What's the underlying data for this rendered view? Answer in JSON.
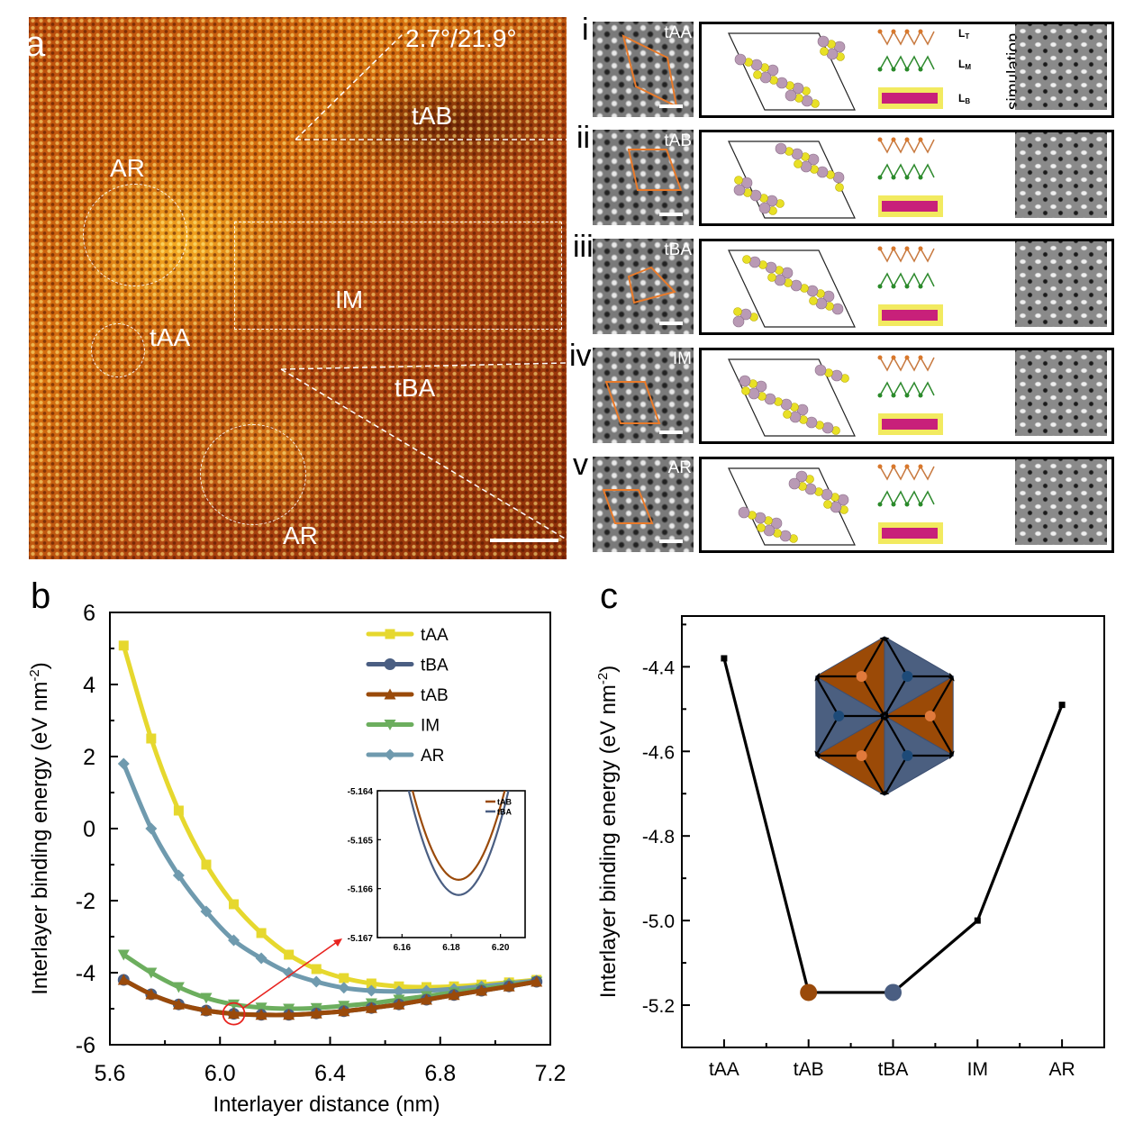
{
  "panel_a": {
    "letter": "a",
    "angle_label": "2.7°/21.9°",
    "region_labels": [
      "tAB",
      "AR",
      "IM",
      "tAA",
      "tBA",
      "AR"
    ]
  },
  "right_panels": {
    "rows": [
      {
        "numeral": "i",
        "stem_label": "tAA",
        "show_layer_labels": true
      },
      {
        "numeral": "ii",
        "stem_label": "tAB"
      },
      {
        "numeral": "iii",
        "stem_label": "tBA"
      },
      {
        "numeral": "iv",
        "stem_label": "IM"
      },
      {
        "numeral": "v",
        "stem_label": "AR"
      }
    ],
    "layer_labels": {
      "top": "L",
      "top_sub": "T",
      "mid": "L",
      "mid_sub": "M",
      "bot": "L",
      "bot_sub": "B"
    },
    "simulation_label": "simulation"
  },
  "colors": {
    "tAA": "#e6d82e",
    "tBA": "#4a5e82",
    "tAB": "#9a4a0a",
    "IM": "#6cae5e",
    "AR": "#6f9aae",
    "highlight": "#e8231f",
    "hex_orange": "#9b4a07",
    "hex_blue": "#4b5f80",
    "dot_orange": "#e07a3c",
    "dot_blue": "#1d4a78"
  },
  "chart_data": [
    {
      "panel": "b",
      "type": "line",
      "title": "",
      "xlabel": "Interlayer distance (nm)",
      "ylabel": "Interlayer binding energy (eV nm",
      "ylabel_sup": "-2",
      "ylabel_end": ")",
      "xlim": [
        5.6,
        7.2
      ],
      "ylim": [
        -6,
        6
      ],
      "xticks": [
        "5.6",
        "6.0",
        "6.4",
        "6.8",
        "7.2"
      ],
      "xtick_values": [
        5.6,
        6.0,
        6.4,
        6.8,
        7.2
      ],
      "yticks": [
        "6",
        "4",
        "2",
        "0",
        "-2",
        "-4",
        "-6"
      ],
      "ytick_values": [
        6,
        4,
        2,
        0,
        -2,
        -4,
        -6
      ],
      "legend_position": "top-right",
      "x": [
        5.65,
        5.75,
        5.85,
        5.95,
        6.05,
        6.15,
        6.25,
        6.35,
        6.45,
        6.55,
        6.65,
        6.75,
        6.85,
        6.95,
        7.05,
        7.15
      ],
      "series": [
        {
          "name": "tAA",
          "marker": "square",
          "values": [
            5.08,
            2.5,
            0.5,
            -1.0,
            -2.1,
            -2.9,
            -3.5,
            -3.9,
            -4.15,
            -4.3,
            -4.38,
            -4.4,
            -4.38,
            -4.33,
            -4.27,
            -4.2
          ]
        },
        {
          "name": "tBA",
          "marker": "circle",
          "values": [
            -4.2,
            -4.6,
            -4.88,
            -5.05,
            -5.14,
            -5.17,
            -5.17,
            -5.13,
            -5.07,
            -4.98,
            -4.88,
            -4.75,
            -4.62,
            -4.5,
            -4.38,
            -4.25
          ]
        },
        {
          "name": "tAB",
          "marker": "triangle-up",
          "values": [
            -4.2,
            -4.6,
            -4.88,
            -5.05,
            -5.14,
            -5.17,
            -5.17,
            -5.13,
            -5.07,
            -4.98,
            -4.88,
            -4.75,
            -4.62,
            -4.5,
            -4.38,
            -4.25
          ]
        },
        {
          "name": "IM",
          "marker": "triangle-down",
          "values": [
            -3.5,
            -4.0,
            -4.4,
            -4.7,
            -4.88,
            -4.97,
            -5.0,
            -4.98,
            -4.92,
            -4.85,
            -4.75,
            -4.65,
            -4.55,
            -4.45,
            -4.35,
            -4.25
          ]
        },
        {
          "name": "AR",
          "marker": "diamond",
          "values": [
            1.8,
            0.0,
            -1.3,
            -2.3,
            -3.1,
            -3.6,
            -4.0,
            -4.25,
            -4.42,
            -4.5,
            -4.52,
            -4.5,
            -4.45,
            -4.38,
            -4.3,
            -4.22
          ]
        }
      ],
      "highlight_point": {
        "x": 6.05,
        "y": -5.14
      },
      "inset": {
        "xlim": [
          6.15,
          6.21
        ],
        "ylim": [
          -5.167,
          -5.164
        ],
        "xticks": [
          "6.16",
          "6.18",
          "6.20"
        ],
        "xtick_values": [
          6.16,
          6.18,
          6.2
        ],
        "yticks": [
          "-5.164",
          "-5.165",
          "-5.166",
          "-5.167"
        ],
        "ytick_values": [
          -5.164,
          -5.165,
          -5.166,
          -5.167
        ],
        "legend": [
          "tAB",
          "tBA"
        ],
        "series": [
          {
            "name": "tAB",
            "min_x": 6.183,
            "min_y": -5.16582
          },
          {
            "name": "tBA",
            "min_x": 6.183,
            "min_y": -5.16613
          }
        ]
      }
    },
    {
      "panel": "c",
      "type": "line",
      "title": "",
      "xlabel": "",
      "ylabel": "Interlayer binding energy (eV nm",
      "ylabel_sup": "-2",
      "ylabel_end": ")",
      "categories": [
        "tAA",
        "tAB",
        "tBA",
        "IM",
        "AR"
      ],
      "values": [
        -4.38,
        -5.17,
        -5.17,
        -5.0,
        -4.49
      ],
      "ylim": [
        -5.3,
        -4.28
      ],
      "yticks": [
        "-4.4",
        "-4.6",
        "-4.8",
        "-5.0",
        "-5.2"
      ],
      "ytick_values": [
        -4.4,
        -4.6,
        -4.8,
        -5.0,
        -5.2
      ],
      "highlighted": {
        "tAB": "#9a4a0a",
        "tBA": "#4a5e82"
      }
    }
  ]
}
